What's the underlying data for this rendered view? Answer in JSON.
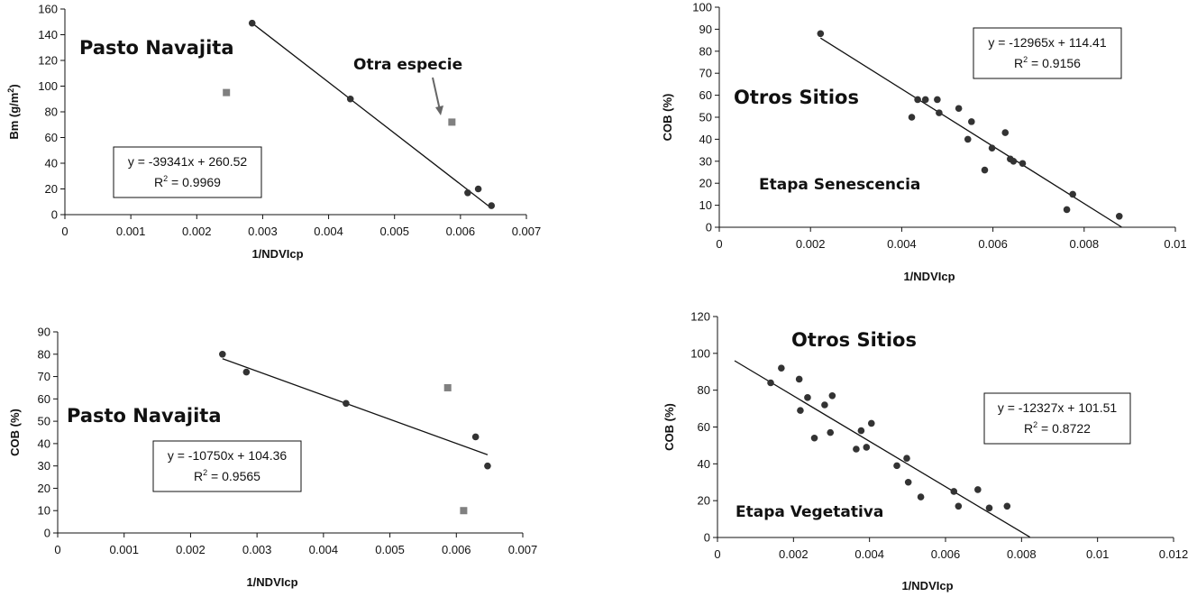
{
  "chart_data": [
    {
      "type": "scatter",
      "xlabel": "1/NDVIcp",
      "ylabel": "Bm (g/m²)",
      "ylabel_base": "Bm (g/m",
      "ylabel_sup": "2",
      "ylabel_tail": ")",
      "xlim": [
        0,
        0.007
      ],
      "ylim": [
        0,
        160
      ],
      "x_ticks": [
        0,
        0.001,
        0.002,
        0.003,
        0.004,
        0.005,
        0.006,
        0.007
      ],
      "x_tick_labels": [
        "0",
        "0.001",
        "0.002",
        "0.003",
        "0.004",
        "0.005",
        "0.006",
        "0.007"
      ],
      "y_ticks": [
        0,
        20,
        40,
        60,
        80,
        100,
        120,
        140,
        160
      ],
      "y_tick_labels": [
        "0",
        "20",
        "40",
        "60",
        "80",
        "100",
        "120",
        "140",
        "160"
      ],
      "title": "Pasto Navajita",
      "series": [
        {
          "name": "Pasto Navajita",
          "marker": "circle",
          "color": "#333333",
          "x": [
            0.00284,
            0.00433,
            0.00611,
            0.00627,
            0.00647
          ],
          "y": [
            149,
            90,
            17,
            20,
            7
          ]
        },
        {
          "name": "Otra especie",
          "marker": "square",
          "color": "#808080",
          "x": [
            0.00245,
            0.00587
          ],
          "y": [
            95,
            72
          ]
        }
      ],
      "trendline": {
        "x": [
          0.00284,
          0.00647
        ],
        "y": [
          149,
          5
        ]
      },
      "equation": "y = -39341x + 260.52",
      "r2_prefix": "R",
      "r2_sup": "2",
      "r2_value": " = 0.9969",
      "annotations": [
        {
          "text": "Otra especie",
          "points_to_x": 0.00587,
          "points_to_y": 72
        }
      ]
    },
    {
      "type": "scatter",
      "xlabel": "1/NDVIcp",
      "ylabel": "COB (%)",
      "xlim": [
        0,
        0.01
      ],
      "ylim": [
        0,
        100
      ],
      "x_ticks": [
        0,
        0.002,
        0.004,
        0.006,
        0.008,
        0.01
      ],
      "x_tick_labels": [
        "0",
        "0.002",
        "0.004",
        "0.006",
        "0.008",
        "0.01"
      ],
      "y_ticks": [
        0,
        10,
        20,
        30,
        40,
        50,
        60,
        70,
        80,
        90,
        100
      ],
      "y_tick_labels": [
        "0",
        "10",
        "20",
        "30",
        "40",
        "50",
        "60",
        "70",
        "80",
        "90",
        "100"
      ],
      "title": "Otros Sitios",
      "subtitle": "Etapa Senescencia",
      "series": [
        {
          "name": "Otros Sitios",
          "marker": "circle",
          "color": "#333333",
          "x": [
            0.00222,
            0.00422,
            0.00435,
            0.00452,
            0.00478,
            0.00482,
            0.00525,
            0.00545,
            0.00553,
            0.00582,
            0.00598,
            0.00627,
            0.00638,
            0.00645,
            0.00665,
            0.00762,
            0.00775,
            0.00877
          ],
          "y": [
            88,
            50,
            58,
            58,
            58,
            52,
            54,
            40,
            48,
            26,
            36,
            43,
            31,
            30,
            29,
            8,
            15,
            5
          ]
        }
      ],
      "trendline": {
        "x": [
          0.00222,
          0.00882
        ],
        "y": [
          86,
          0.1
        ]
      },
      "equation": "y = -12965x + 114.41",
      "r2_prefix": "R",
      "r2_sup": "2",
      "r2_value": " = 0.9156"
    },
    {
      "type": "scatter",
      "xlabel": "1/NDVIcp",
      "ylabel": "COB (%)",
      "xlim": [
        0,
        0.007
      ],
      "ylim": [
        0,
        90
      ],
      "x_ticks": [
        0,
        0.001,
        0.002,
        0.003,
        0.004,
        0.005,
        0.006,
        0.007
      ],
      "x_tick_labels": [
        "0",
        "0.001",
        "0.002",
        "0.003",
        "0.004",
        "0.005",
        "0.006",
        "0.007"
      ],
      "y_ticks": [
        0,
        10,
        20,
        30,
        40,
        50,
        60,
        70,
        80,
        90
      ],
      "y_tick_labels": [
        "0",
        "10",
        "20",
        "30",
        "40",
        "50",
        "60",
        "70",
        "80",
        "90"
      ],
      "title": "Pasto Navajita",
      "series": [
        {
          "name": "Pasto Navajita",
          "marker": "circle",
          "color": "#333333",
          "x": [
            0.00248,
            0.00284,
            0.00434,
            0.00629,
            0.00647
          ],
          "y": [
            80,
            72,
            58,
            43,
            30
          ]
        },
        {
          "name": "Otra especie",
          "marker": "square",
          "color": "#808080",
          "x": [
            0.00587,
            0.00611
          ],
          "y": [
            65,
            10
          ]
        }
      ],
      "trendline": {
        "x": [
          0.00248,
          0.00647
        ],
        "y": [
          78,
          35
        ]
      },
      "equation": "y = -10750x + 104.36",
      "r2_prefix": "R",
      "r2_sup": "2",
      "r2_value": " = 0.9565"
    },
    {
      "type": "scatter",
      "xlabel": "1/NDVIcp",
      "ylabel": "COB (%)",
      "xlim": [
        0,
        0.012
      ],
      "ylim": [
        0,
        120
      ],
      "x_ticks": [
        0,
        0.002,
        0.004,
        0.006,
        0.008,
        0.01,
        0.012
      ],
      "x_tick_labels": [
        "0",
        "0.002",
        "0.004",
        "0.006",
        "0.008",
        "0.01",
        "0.012"
      ],
      "y_ticks": [
        0,
        20,
        40,
        60,
        80,
        100,
        120
      ],
      "y_tick_labels": [
        "0",
        "20",
        "40",
        "60",
        "80",
        "100",
        "120"
      ],
      "title": "Otros Sitios",
      "subtitle": "Etapa Vegetativa",
      "series": [
        {
          "name": "Otros Sitios",
          "marker": "circle",
          "color": "#333333",
          "x": [
            0.0014,
            0.00168,
            0.00215,
            0.00218,
            0.00237,
            0.00255,
            0.00282,
            0.00297,
            0.00302,
            0.00365,
            0.00378,
            0.00392,
            0.00405,
            0.00472,
            0.00498,
            0.00502,
            0.00535,
            0.00622,
            0.00634,
            0.00685,
            0.00715,
            0.00762
          ],
          "y": [
            84,
            92,
            86,
            69,
            76,
            54,
            72,
            57,
            77,
            48,
            58,
            49,
            62,
            39,
            43,
            30,
            22,
            25,
            17,
            26,
            16,
            17
          ]
        }
      ],
      "trendline": {
        "x": [
          0.00045,
          0.00822
        ],
        "y": [
          96,
          0.2
        ]
      },
      "equation": "y = -12327x + 101.51",
      "r2_prefix": "R",
      "r2_sup": "2",
      "r2_value": " = 0.8722"
    }
  ]
}
